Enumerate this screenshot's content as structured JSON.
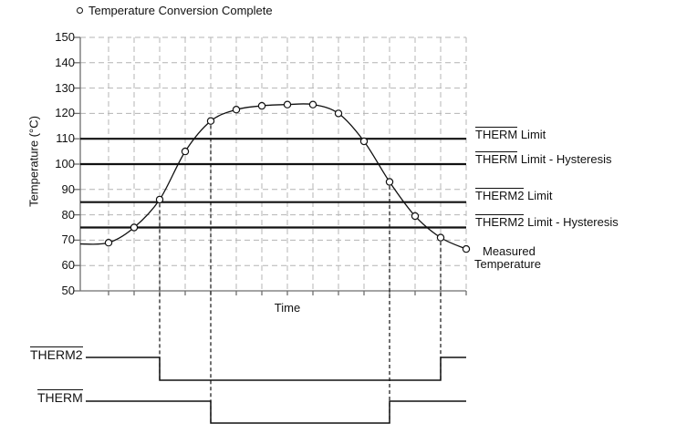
{
  "legend": {
    "marker": "open-circle",
    "label": "Temperature Conversion Complete"
  },
  "axes": {
    "y_title": "Temperature (°C)",
    "x_title": "Time"
  },
  "colors": {
    "ink": "#111111",
    "grid": "#b4b4b4",
    "axis": "#6e6e6e",
    "marker_fill": "#ffffff",
    "background": "#ffffff"
  },
  "chart_data": {
    "type": "line",
    "title": "",
    "xlabel": "Time",
    "ylabel": "Temperature (°C)",
    "ylim": [
      50,
      150
    ],
    "yticks": [
      150,
      140,
      130,
      120,
      110,
      100,
      90,
      80,
      70,
      60,
      50
    ],
    "x_tick_labels_visible": false,
    "grid": "dashed",
    "x": [
      1,
      2,
      3,
      4,
      5,
      6,
      7,
      8,
      9,
      10,
      11,
      12,
      13,
      14,
      15
    ],
    "series": [
      {
        "name": "Measured Temperature",
        "marker": "open-circle",
        "start_value_at_axis": 68.5,
        "values": [
          69,
          75,
          86,
          105,
          117,
          121.5,
          123,
          123.5,
          123.5,
          120,
          109,
          93,
          79.5,
          71,
          66.5
        ]
      }
    ],
    "limit_lines": [
      {
        "label_bar": "THERM",
        "label_rest": " Limit",
        "value": 110
      },
      {
        "label_bar": "THERM",
        "label_rest": " Limit - Hysteresis",
        "value": 100
      },
      {
        "label_bar": "THERM2",
        "label_rest": " Limit",
        "value": 85
      },
      {
        "label_bar": "THERM2",
        "label_rest": " Limit - Hysteresis",
        "value": 75
      }
    ],
    "curve_end_label": {
      "line1": "Measured",
      "line2": "Temperature"
    },
    "legend_entries": [
      "Temperature Conversion Complete"
    ]
  },
  "signals": [
    {
      "label": "THERM2",
      "overlined": true,
      "active_low": true,
      "fall_at_sample": 3,
      "rise_at_sample": 14
    },
    {
      "label": "THERM",
      "overlined": true,
      "active_low": true,
      "fall_at_sample": 5,
      "rise_at_sample": 12
    }
  ]
}
